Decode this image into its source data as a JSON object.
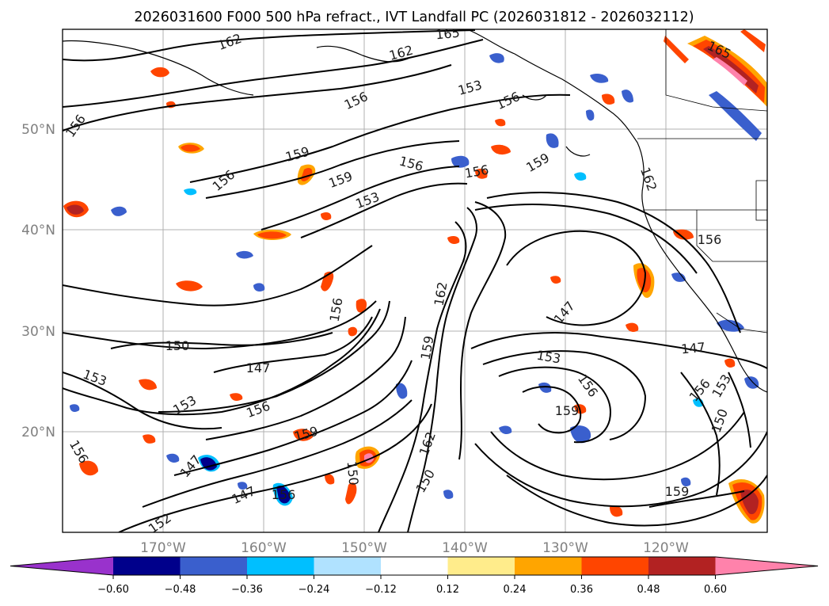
{
  "title": "2026031600 F000 500 hPa refract., IVT Landfall PC (2026031812 - 2026032112)",
  "lat_ticks": [
    "50°N",
    "40°N",
    "30°N",
    "20°N"
  ],
  "lon_ticks": [
    "170°W",
    "160°W",
    "150°W",
    "140°W",
    "130°W",
    "120°W"
  ],
  "colorbar": {
    "colors": [
      "#9932cc",
      "#00008b",
      "#3a5fcd",
      "#00bfff",
      "#b0e2ff",
      "#ffffff",
      "#ffec8b",
      "#ffa500",
      "#ff4500",
      "#b22222",
      "#ff82ab"
    ],
    "ticks": [
      "−0.60",
      "−0.48",
      "−0.36",
      "−0.24",
      "−0.12",
      "0.12",
      "0.24",
      "0.36",
      "0.48",
      "0.60"
    ]
  },
  "contour_labels": [
    "165",
    "162",
    "162",
    "165",
    "156",
    "153",
    "156",
    "156",
    "159",
    "156",
    "156",
    "159",
    "156",
    "159",
    "153",
    "162",
    "156",
    "156",
    "162",
    "147",
    "150",
    "153",
    "147",
    "159",
    "147",
    "153",
    "156",
    "153",
    "159",
    "156",
    "153",
    "150",
    "156",
    "162",
    "156",
    "159",
    "147",
    "150",
    "150",
    "147",
    "156",
    "152",
    "159"
  ]
}
